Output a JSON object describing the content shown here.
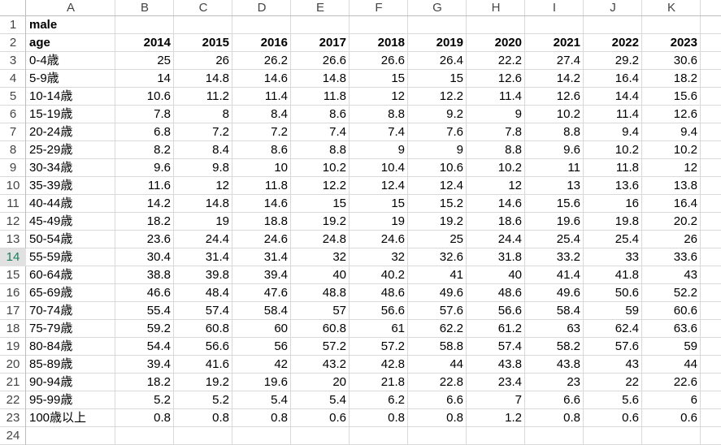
{
  "column_headers": [
    "A",
    "B",
    "C",
    "D",
    "E",
    "F",
    "G",
    "H",
    "I",
    "J",
    "K"
  ],
  "row_numbers": [
    1,
    2,
    3,
    4,
    5,
    6,
    7,
    8,
    9,
    10,
    11,
    12,
    13,
    14,
    15,
    16,
    17,
    18,
    19,
    20,
    21,
    22,
    23,
    24
  ],
  "selected_row": 14,
  "rows": [
    [
      "male"
    ],
    [
      "age",
      2014,
      2015,
      2016,
      2017,
      2018,
      2019,
      2020,
      2021,
      2022,
      2023
    ],
    [
      "0-4歳",
      25,
      26,
      26.2,
      26.6,
      26.6,
      26.4,
      22.2,
      27.4,
      29.2,
      30.6
    ],
    [
      "5-9歳",
      14,
      14.8,
      14.6,
      14.8,
      15,
      15,
      12.6,
      14.2,
      16.4,
      18.2
    ],
    [
      "10-14歳",
      10.6,
      11.2,
      11.4,
      11.8,
      12,
      12.2,
      11.4,
      12.6,
      14.4,
      15.6
    ],
    [
      "15-19歳",
      7.8,
      8,
      8.4,
      8.6,
      8.8,
      9.2,
      9,
      10.2,
      11.4,
      12.6
    ],
    [
      "20-24歳",
      6.8,
      7.2,
      7.2,
      7.4,
      7.4,
      7.6,
      7.8,
      8.8,
      9.4,
      9.4
    ],
    [
      "25-29歳",
      8.2,
      8.4,
      8.6,
      8.8,
      9,
      9,
      8.8,
      9.6,
      10.2,
      10.2
    ],
    [
      "30-34歳",
      9.6,
      9.8,
      10,
      10.2,
      10.4,
      10.6,
      10.2,
      11,
      11.8,
      12
    ],
    [
      "35-39歳",
      11.6,
      12,
      11.8,
      12.2,
      12.4,
      12.4,
      12,
      13,
      13.6,
      13.8
    ],
    [
      "40-44歳",
      14.2,
      14.8,
      14.6,
      15,
      15,
      15.2,
      14.6,
      15.6,
      16,
      16.4
    ],
    [
      "45-49歳",
      18.2,
      19,
      18.8,
      19.2,
      19,
      19.2,
      18.6,
      19.6,
      19.8,
      20.2
    ],
    [
      "50-54歳",
      23.6,
      24.4,
      24.6,
      24.8,
      24.6,
      25,
      24.4,
      25.4,
      25.4,
      26
    ],
    [
      "55-59歳",
      30.4,
      31.4,
      31.4,
      32,
      32,
      32.6,
      31.8,
      33.2,
      33,
      33.6
    ],
    [
      "60-64歳",
      38.8,
      39.8,
      39.4,
      40,
      40.2,
      41,
      40,
      41.4,
      41.8,
      43
    ],
    [
      "65-69歳",
      46.6,
      48.4,
      47.6,
      48.8,
      48.6,
      49.6,
      48.6,
      49.6,
      50.6,
      52.2
    ],
    [
      "70-74歳",
      55.4,
      57.4,
      58.4,
      57,
      56.6,
      57.6,
      56.6,
      58.4,
      59,
      60.6
    ],
    [
      "75-79歳",
      59.2,
      60.8,
      60,
      60.8,
      61,
      62.2,
      61.2,
      63,
      62.4,
      63.6
    ],
    [
      "80-84歳",
      54.4,
      56.6,
      56,
      57.2,
      57.2,
      58.8,
      57.4,
      58.2,
      57.6,
      59
    ],
    [
      "85-89歳",
      39.4,
      41.6,
      42,
      43.2,
      42.8,
      44,
      43.8,
      43.8,
      43,
      44
    ],
    [
      "90-94歳",
      18.2,
      19.2,
      19.6,
      20,
      21.8,
      22.8,
      23.4,
      23,
      22,
      22.6
    ],
    [
      "95-99歳",
      5.2,
      5.2,
      5.4,
      5.4,
      6.2,
      6.6,
      7,
      6.6,
      5.6,
      6
    ],
    [
      "100歳以上",
      0.8,
      0.8,
      0.8,
      0.6,
      0.8,
      0.8,
      1.2,
      0.8,
      0.6,
      0.6
    ]
  ]
}
